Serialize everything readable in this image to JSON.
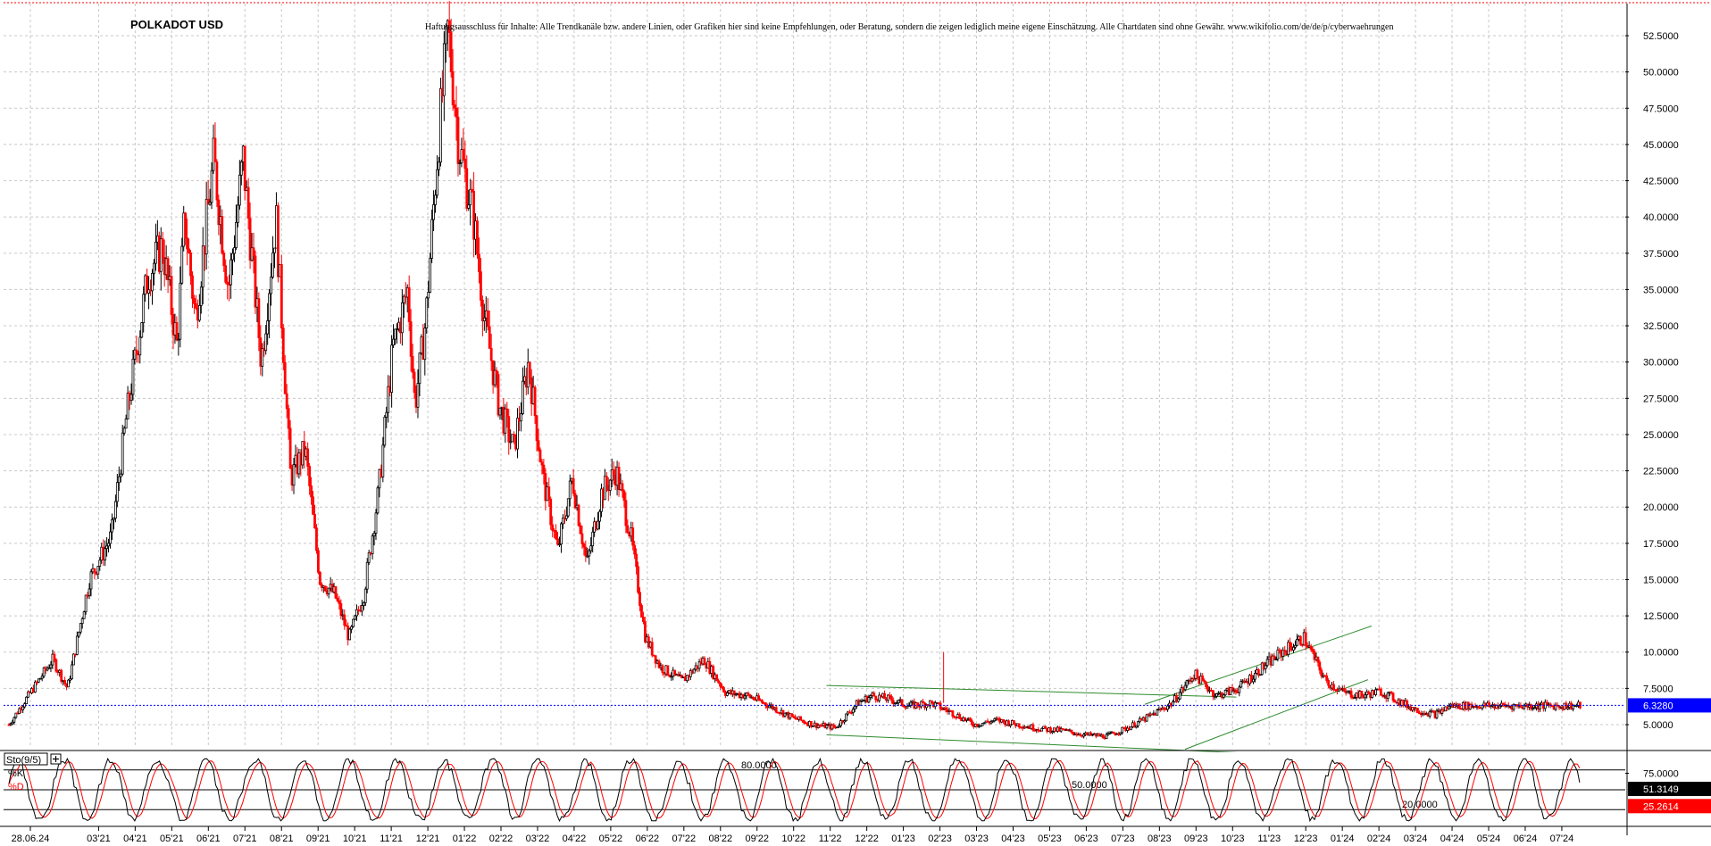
{
  "chart_data": [
    {
      "type": "candlestick",
      "title": "POLKADOT USD",
      "disclaimer": "Haftungsausschluss für Inhalte: Alle Trendkanäle bzw. andere Linien, oder Grafiken hier sind keine Empfehlungen, oder Beratung, sondern die zeigen lediglich meine eigene Einschätzung. Alle Chartdaten sind ohne Gewähr.  www.wikifolio.com/de/de/p/cyberwaehrungen",
      "ylim": [
        3.0,
        54.5
      ],
      "y_ticks": [
        "52.5000",
        "50.0000",
        "47.5000",
        "45.0000",
        "42.5000",
        "40.0000",
        "37.5000",
        "35.0000",
        "32.5000",
        "30.0000",
        "27.5000",
        "25.0000",
        "22.5000",
        "20.0000",
        "17.5000",
        "15.0000",
        "12.5000",
        "10.0000",
        "7.5000",
        "5.0000"
      ],
      "y_tick_values": [
        52.5,
        50,
        47.5,
        45,
        42.5,
        40,
        37.5,
        35,
        32.5,
        30,
        27.5,
        25,
        22.5,
        20,
        17.5,
        15,
        12.5,
        10,
        7.5,
        5
      ],
      "x_ticks": [
        "28.06.24",
        "03'21",
        "04'21",
        "05'21",
        "06'21",
        "07'21",
        "08'21",
        "09'21",
        "10'21",
        "11'21",
        "12'21",
        "01'22",
        "02'22",
        "03'22",
        "04'22",
        "05'22",
        "06'22",
        "07'22",
        "08'22",
        "09'22",
        "10'22",
        "11'22",
        "12'22",
        "01'23",
        "02'23",
        "03'23",
        "04'23",
        "05'23",
        "06'23",
        "07'23",
        "08'23",
        "09'23",
        "10'23",
        "11'23",
        "12'23",
        "01'24",
        "02'24",
        "03'24",
        "04'24",
        "05'24",
        "06'24",
        "07'24"
      ],
      "x_tick_index": [
        0,
        3,
        4,
        5,
        6,
        7,
        8,
        9,
        10,
        11,
        12,
        13,
        14,
        15,
        16,
        17,
        18,
        19,
        20,
        21,
        22,
        23,
        24,
        25,
        26,
        27,
        28,
        29,
        30,
        31,
        32,
        33,
        34,
        35,
        36,
        37,
        38,
        39,
        40,
        41,
        42,
        43
      ],
      "x_range": [
        0,
        44
      ],
      "path_months": [
        0,
        1.2,
        1.6,
        2.2,
        2.8,
        3.2,
        3.8,
        4.2,
        4.6,
        4.8,
        5.1,
        5.6,
        6.0,
        6.4,
        6.9,
        7.3,
        7.7,
        8.1,
        8.5,
        8.9,
        9.3,
        9.7,
        10.1,
        10.5,
        10.9,
        11.1,
        11.4,
        11.7,
        12.0,
        12.3,
        12.7,
        13.0,
        13.4,
        13.8,
        14.2,
        14.6,
        15.0,
        15.4,
        15.8,
        16.2,
        16.6,
        17.0,
        17.4,
        17.8,
        18.4,
        19.0,
        19.6,
        20.2,
        20.8,
        21.4,
        22.0,
        22.6,
        23.2,
        23.6,
        24.0,
        24.6,
        25.2,
        25.8,
        26.4,
        27.0,
        27.6,
        28.2,
        28.8,
        29.4,
        30.0,
        30.6,
        31.2,
        31.8,
        32.4,
        33.0,
        33.6,
        34.2,
        34.8,
        35.4,
        36.0,
        36.5,
        37.0,
        37.5,
        38.0,
        38.5,
        39.0,
        39.4,
        39.8,
        40.2,
        40.6,
        41.0,
        41.6,
        42.2,
        42.7,
        43.0
      ],
      "path_close": [
        5.0,
        9.5,
        7.5,
        15.0,
        18.0,
        26.0,
        36.0,
        38.0,
        31.0,
        40.0,
        33.0,
        44.0,
        35.0,
        44.0,
        30.0,
        40.0,
        22.0,
        24.0,
        15.0,
        14.0,
        11.0,
        14.0,
        21.0,
        31.0,
        35.0,
        27.0,
        33.0,
        44.0,
        53.0,
        45.0,
        40.0,
        33.0,
        27.0,
        24.0,
        30.0,
        22.0,
        17.0,
        22.0,
        16.0,
        21.0,
        22.5,
        18.0,
        11.0,
        9.0,
        8.0,
        9.5,
        7.2,
        7.0,
        6.3,
        5.5,
        5.0,
        4.8,
        6.5,
        7.0,
        6.8,
        6.3,
        6.5,
        5.8,
        5.0,
        5.3,
        5.0,
        4.7,
        4.6,
        4.3,
        4.2,
        4.8,
        5.6,
        6.5,
        8.5,
        7.0,
        7.5,
        8.8,
        10.0,
        11.0,
        8.0,
        7.2,
        7.0,
        7.3,
        6.6,
        6.0,
        5.7,
        6.3,
        6.3,
        6.3,
        6.3,
        6.3,
        6.3,
        6.3,
        6.3,
        6.3
      ],
      "last_price": "6.3280",
      "last_price_value": 6.328,
      "trendlines": [
        {
          "from": [
            22.4,
            7.7
          ],
          "to": [
            33.6,
            6.9
          ]
        },
        {
          "from": [
            22.4,
            4.3
          ],
          "to": [
            34.2,
            3.0
          ]
        },
        {
          "from": [
            31.1,
            6.4
          ],
          "to": [
            37.3,
            11.8
          ]
        },
        {
          "from": [
            32.2,
            3.3
          ],
          "to": [
            37.2,
            8.1
          ]
        }
      ],
      "colors": {
        "up": "#000000",
        "down": "#ff0000",
        "trend": "#2e8b2e",
        "price_line": "#0000ff",
        "price_box": "#0000ff"
      }
    },
    {
      "type": "line",
      "title": "Sto(9/5)",
      "series": [
        {
          "name": "%K",
          "color": "#000000"
        },
        {
          "name": "%D",
          "color": "#ff0000"
        }
      ],
      "ylim": [
        0,
        100
      ],
      "y_ticks": [
        "75.0000"
      ],
      "levels": [
        {
          "label": "80.0000",
          "value": 80
        },
        {
          "label": "50.0000",
          "value": 50
        },
        {
          "label": "20.0000",
          "value": 20
        }
      ],
      "last_k": "51.3149",
      "last_d": "25.2614",
      "colors": {
        "k": "#000000",
        "d": "#ff0000",
        "d_box": "#ff0000",
        "k_box": "#000000"
      }
    }
  ]
}
